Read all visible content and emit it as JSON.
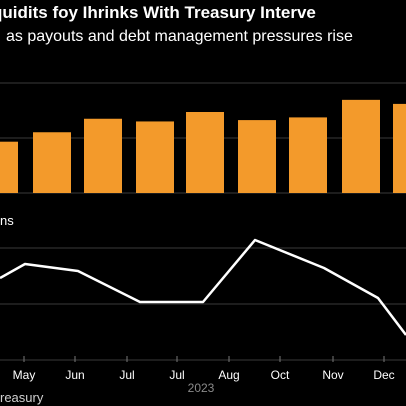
{
  "chart_data": {
    "type": "bar+line",
    "title": "quidits foy Ihrinks With Treasury Interve",
    "subtitle": "as payouts and debt management pressures rise",
    "categories": [
      "May",
      "Jun",
      "Jul",
      "Jul",
      "Aug",
      "Oct",
      "Nov",
      "Dec"
    ],
    "year_label": "2023",
    "bar_series": {
      "values": [
        45,
        55,
        53,
        60,
        54,
        56,
        69,
        66
      ],
      "color": "#f39a2b",
      "partial_left_value": 38
    },
    "line_panel_label": "ns",
    "line_series": {
      "values": [
        9.6,
        8.9,
        5.8,
        5.8,
        12.0,
        9.2,
        6.2
      ],
      "start_value": 8.2,
      "end_value": 2.5,
      "color": "#ffffff"
    },
    "grid": true,
    "gridline_color": "#3a3a3a"
  },
  "footer": {
    "source_fragment": "reasury"
  }
}
